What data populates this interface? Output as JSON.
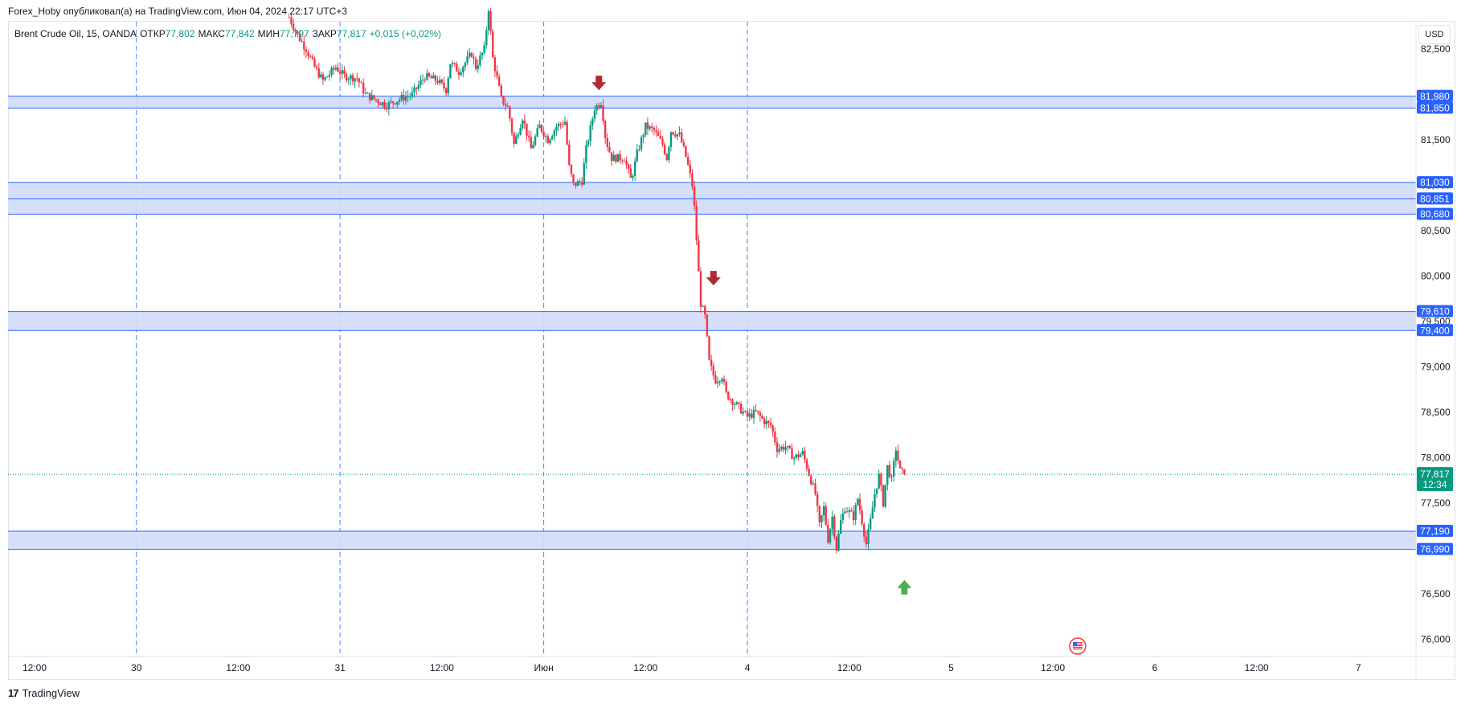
{
  "header": {
    "publish_line": "Forex_Hoby опубликовал(а) на TradingView.com, Июн 04, 2024 22:17 UTC+3"
  },
  "legend": {
    "symbol": "Brent Crude Oil, 15, OANDA",
    "open_label": "ОТКР",
    "open_value": "77,802",
    "high_label": "МАКС",
    "high_value": "77,842",
    "low_label": "МИН",
    "low_value": "77,797",
    "close_label": "ЗАКР",
    "close_value": "77,817",
    "change": "+0,015 (+0,02%)"
  },
  "currency_button": "USD",
  "footer": {
    "brand": "TradingView"
  },
  "colors": {
    "up": "#089981",
    "down": "#f23645",
    "zone_fill": "#d1dcfa",
    "zone_line": "#2962ff",
    "badge": "#2962ff",
    "grid_dash": "#2962ff",
    "price_line": "#089981",
    "arrow_down": "#b22833",
    "arrow_up": "#4caf50"
  },
  "chart_data": {
    "type": "candlestick",
    "symbol": "Brent Crude Oil",
    "timeframe": "15",
    "ylim": [
      75.7,
      82.9
    ],
    "y_ticks": [
      "82,500",
      "82,000",
      "81,500",
      "81,000",
      "80,500",
      "80,000",
      "79,500",
      "79,000",
      "78,500",
      "78,000",
      "77,500",
      "77,000",
      "76,500",
      "76,000"
    ],
    "y_tick_values": [
      82.5,
      82.0,
      81.5,
      81.0,
      80.5,
      80.0,
      79.5,
      79.0,
      78.5,
      78.0,
      77.5,
      77.0,
      76.5,
      76.0
    ],
    "x_ticks": [
      "12:00",
      "30",
      "12:00",
      "31",
      "12:00",
      "Июн",
      "12:00",
      "4",
      "12:00",
      "5",
      "12:00",
      "6",
      "12:00",
      "7"
    ],
    "x_tick_hours": [
      12,
      24,
      36,
      48,
      60,
      72,
      84,
      96,
      108,
      120,
      132,
      144,
      156,
      168
    ],
    "day_separators_hours": [
      24,
      48,
      72,
      96
    ],
    "zones": [
      {
        "top": 81.98,
        "bottom": 81.85,
        "top_label": "81,980",
        "bottom_label": "81,850"
      },
      {
        "top": 81.03,
        "bottom": 80.68,
        "top_label": "81,030",
        "bottom_label": "80,680",
        "mid": 80.851,
        "mid_label": "80,851"
      },
      {
        "top": 79.61,
        "bottom": 79.4,
        "top_label": "79,610",
        "bottom_label": "79,400"
      },
      {
        "top": 77.19,
        "bottom": 76.99,
        "top_label": "77,190",
        "bottom_label": "76,990"
      }
    ],
    "last_price": 77.817,
    "last_price_label": "77,817",
    "countdown_label": "12:34",
    "signals": [
      {
        "type": "down",
        "hour": 78.5,
        "price": 82.1
      },
      {
        "type": "down",
        "hour": 92.0,
        "price": 79.95
      },
      {
        "type": "up",
        "hour": 114.5,
        "price": 76.6
      }
    ],
    "price_path": [
      [
        42.0,
        82.85
      ],
      [
        43.0,
        82.65
      ],
      [
        44.0,
        82.5
      ],
      [
        45.0,
        82.3
      ],
      [
        46.0,
        82.15
      ],
      [
        47.5,
        82.3
      ],
      [
        48.5,
        82.2
      ],
      [
        50.0,
        82.18
      ],
      [
        51.0,
        82.0
      ],
      [
        52.0,
        81.95
      ],
      [
        53.5,
        81.88
      ],
      [
        55.0,
        81.95
      ],
      [
        56.5,
        82.0
      ],
      [
        58.0,
        82.2
      ],
      [
        59.5,
        82.15
      ],
      [
        60.5,
        82.05
      ],
      [
        61.0,
        82.35
      ],
      [
        62.0,
        82.25
      ],
      [
        63.5,
        82.45
      ],
      [
        64.0,
        82.3
      ],
      [
        65.0,
        82.5
      ],
      [
        65.5,
        82.95
      ],
      [
        66.0,
        82.4
      ],
      [
        67.0,
        81.95
      ],
      [
        67.8,
        81.85
      ],
      [
        68.5,
        81.45
      ],
      [
        69.5,
        81.75
      ],
      [
        70.5,
        81.4
      ],
      [
        71.5,
        81.65
      ],
      [
        72.5,
        81.5
      ],
      [
        73.5,
        81.65
      ],
      [
        74.5,
        81.7
      ],
      [
        75.0,
        81.2
      ],
      [
        75.5,
        81.0
      ],
      [
        76.5,
        81.05
      ],
      [
        77.0,
        81.4
      ],
      [
        78.0,
        81.85
      ],
      [
        78.8,
        81.92
      ],
      [
        79.3,
        81.5
      ],
      [
        80.0,
        81.3
      ],
      [
        81.5,
        81.3
      ],
      [
        82.3,
        81.05
      ],
      [
        83.0,
        81.35
      ],
      [
        84.0,
        81.65
      ],
      [
        85.0,
        81.6
      ],
      [
        86.0,
        81.45
      ],
      [
        86.5,
        81.3
      ],
      [
        87.0,
        81.6
      ],
      [
        88.0,
        81.55
      ],
      [
        88.8,
        81.3
      ],
      [
        89.5,
        81.0
      ],
      [
        89.8,
        80.7
      ],
      [
        90.2,
        80.1
      ],
      [
        90.5,
        79.7
      ],
      [
        91.0,
        79.55
      ],
      [
        91.5,
        79.05
      ],
      [
        92.2,
        78.85
      ],
      [
        93.0,
        78.9
      ],
      [
        93.5,
        78.7
      ],
      [
        94.5,
        78.6
      ],
      [
        95.5,
        78.5
      ],
      [
        96.0,
        78.45
      ],
      [
        97.0,
        78.5
      ],
      [
        98.0,
        78.4
      ],
      [
        98.8,
        78.35
      ],
      [
        99.5,
        78.1
      ],
      [
        100.5,
        78.12
      ],
      [
        101.5,
        78.0
      ],
      [
        102.5,
        78.05
      ],
      [
        103.0,
        77.9
      ],
      [
        103.5,
        77.75
      ],
      [
        104.0,
        77.6
      ],
      [
        104.5,
        77.25
      ],
      [
        105.0,
        77.45
      ],
      [
        105.5,
        77.1
      ],
      [
        106.0,
        77.35
      ],
      [
        106.5,
        77.0
      ],
      [
        107.0,
        77.3
      ],
      [
        107.5,
        77.45
      ],
      [
        108.5,
        77.35
      ],
      [
        109.0,
        77.55
      ],
      [
        109.5,
        77.3
      ],
      [
        110.0,
        77.05
      ],
      [
        110.5,
        77.3
      ],
      [
        111.0,
        77.6
      ],
      [
        111.5,
        77.8
      ],
      [
        112.0,
        77.5
      ],
      [
        112.5,
        77.9
      ],
      [
        113.0,
        77.75
      ],
      [
        113.5,
        78.1
      ],
      [
        114.0,
        77.85
      ],
      [
        114.5,
        77.817
      ]
    ]
  }
}
